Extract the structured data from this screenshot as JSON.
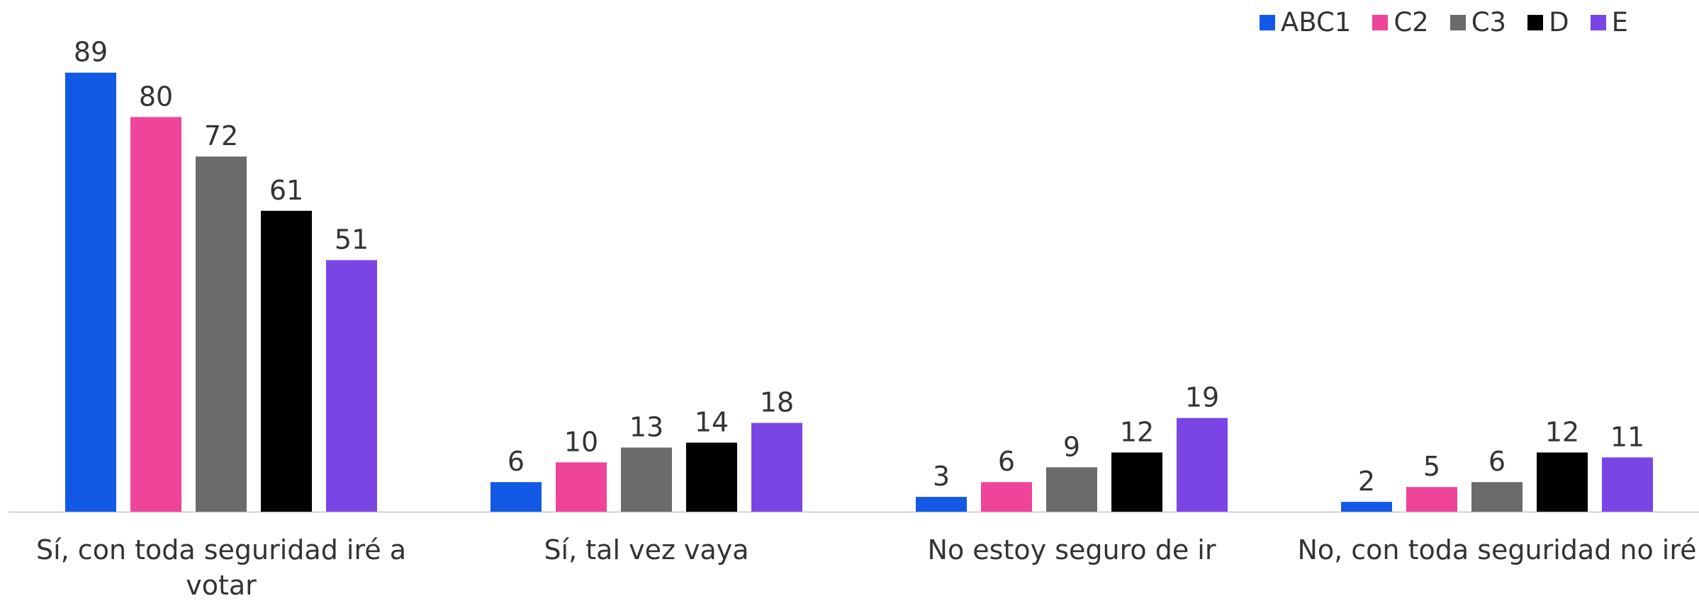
{
  "chart_data": {
    "type": "bar",
    "categories": [
      "Sí, con toda seguridad iré a votar",
      "Sí, tal vez vaya",
      "No estoy seguro de ir",
      "No, con toda seguridad no iré"
    ],
    "series": [
      {
        "name": "ABC1",
        "color": "#1259e6",
        "values": [
          89,
          6,
          3,
          2
        ]
      },
      {
        "name": "C2",
        "color": "#ee4499",
        "values": [
          80,
          10,
          6,
          5
        ]
      },
      {
        "name": "C3",
        "color": "#6b6b6b",
        "values": [
          72,
          13,
          9,
          6
        ]
      },
      {
        "name": "D",
        "color": "#000000",
        "values": [
          61,
          14,
          12,
          12
        ]
      },
      {
        "name": "E",
        "color": "#7b45e6",
        "values": [
          51,
          18,
          19,
          11
        ]
      }
    ],
    "ylim": [
      0,
      100
    ],
    "legend": "top-right"
  }
}
